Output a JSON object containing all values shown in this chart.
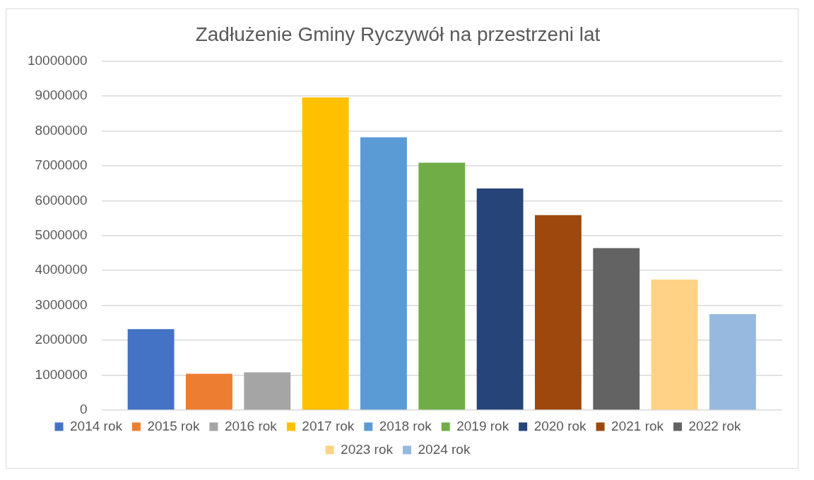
{
  "chart_data": {
    "type": "bar",
    "title": "Zadłużenie Gminy Ryczywół na przestrzeni lat",
    "categories": [
      null
    ],
    "series": [
      {
        "name": "2014 rok",
        "color": "#4472c4",
        "values": [
          2320000
        ]
      },
      {
        "name": "2015 rok",
        "color": "#ed7d31",
        "values": [
          1040000
        ]
      },
      {
        "name": "2016 rok",
        "color": "#a5a5a5",
        "values": [
          1080000
        ]
      },
      {
        "name": "2017 rok",
        "color": "#ffc000",
        "values": [
          8960000
        ]
      },
      {
        "name": "2018 rok",
        "color": "#5b9bd5",
        "values": [
          7820000
        ]
      },
      {
        "name": "2019 rok",
        "color": "#70ad47",
        "values": [
          7090000
        ]
      },
      {
        "name": "2020 rok",
        "color": "#264478",
        "values": [
          6350000
        ]
      },
      {
        "name": "2021 rok",
        "color": "#9e480e",
        "values": [
          5590000
        ]
      },
      {
        "name": "2022 rok",
        "color": "#636363",
        "values": [
          4640000
        ]
      },
      {
        "name": "2023 rok",
        "color": "#ffd285",
        "values": [
          3740000
        ]
      },
      {
        "name": "2024 rok",
        "color": "#97b9e0",
        "values": [
          2750000
        ]
      }
    ],
    "ylim": [
      0,
      10000000
    ],
    "yticks": [
      0,
      1000000,
      2000000,
      3000000,
      4000000,
      5000000,
      6000000,
      7000000,
      8000000,
      9000000,
      10000000
    ],
    "grid": "y",
    "legend": "bottom"
  }
}
